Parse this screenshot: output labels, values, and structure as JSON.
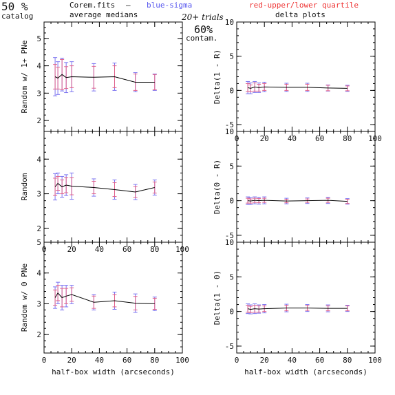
{
  "header": {
    "frac": "50 %",
    "catalog": "catalog",
    "file": "Corem.fits",
    "dash": "–",
    "blue_label": "blue-sigma",
    "red_label": "red-upper/lower quartile",
    "avg_medians": "average medians",
    "trials": "20+ trials",
    "contam_pct": "60%",
    "contam": "contam.",
    "delta_plots": "delta plots"
  },
  "colors": {
    "sigma": "#7b73f0",
    "quartile": "#e0608a",
    "line": "#000000",
    "text_blue": "#5555ee",
    "text_red": "#ee3333"
  },
  "chart_data": [
    {
      "type": "line",
      "id": "left-top",
      "ylabel": "Random w/ 1+ PNe",
      "xlabel": "",
      "xlim": [
        0,
        100
      ],
      "ylim": [
        1.6,
        5.6
      ],
      "yticks": [
        "2",
        "3",
        "4",
        "5"
      ],
      "xticks": [],
      "x": [
        8,
        10,
        13,
        16,
        20,
        36,
        51,
        66,
        80
      ],
      "values": [
        3.6,
        3.55,
        3.68,
        3.57,
        3.6,
        3.58,
        3.6,
        3.4,
        3.4
      ],
      "sigma": [
        0.7,
        0.6,
        0.6,
        0.55,
        0.55,
        0.5,
        0.5,
        0.35,
        0.3
      ],
      "quartile": [
        0.45,
        0.4,
        0.55,
        0.4,
        0.4,
        0.4,
        0.4,
        0.3,
        0.28
      ]
    },
    {
      "type": "line",
      "id": "right-top",
      "ylabel": "Delta(1 - R)",
      "xlabel": "",
      "xlim": [
        0,
        100
      ],
      "ylim": [
        -6,
        10
      ],
      "yticks": [
        "-5",
        "0",
        "5",
        "10"
      ],
      "xticks": [
        "0",
        "20",
        "40",
        "60",
        "80",
        "100"
      ],
      "x": [
        8,
        10,
        13,
        16,
        20,
        36,
        51,
        66,
        80
      ],
      "values": [
        0.4,
        0.3,
        0.5,
        0.4,
        0.5,
        0.45,
        0.45,
        0.35,
        0.3
      ],
      "sigma": [
        0.9,
        0.8,
        0.8,
        0.7,
        0.7,
        0.6,
        0.6,
        0.45,
        0.45
      ],
      "quartile": [
        0.6,
        0.5,
        0.6,
        0.5,
        0.5,
        0.45,
        0.45,
        0.4,
        0.35
      ]
    },
    {
      "type": "line",
      "id": "left-mid",
      "ylabel": "Random",
      "xlabel": "",
      "xlim": [
        0,
        100
      ],
      "ylim": [
        1.6,
        4.8
      ],
      "yticks": [
        "2",
        "3",
        "4"
      ],
      "xticks": [
        "0",
        "20",
        "40",
        "60",
        "80",
        "100"
      ],
      "x": [
        8,
        10,
        13,
        16,
        20,
        36,
        51,
        66,
        80
      ],
      "values": [
        3.2,
        3.3,
        3.2,
        3.25,
        3.22,
        3.18,
        3.12,
        3.05,
        3.18
      ],
      "sigma": [
        0.38,
        0.3,
        0.3,
        0.3,
        0.38,
        0.25,
        0.28,
        0.22,
        0.22
      ],
      "quartile": [
        0.25,
        0.2,
        0.2,
        0.22,
        0.25,
        0.18,
        0.2,
        0.16,
        0.16
      ]
    },
    {
      "type": "line",
      "id": "right-mid",
      "ylabel": "Delta(0 - R)",
      "xlabel": "",
      "xlim": [
        0,
        100
      ],
      "ylim": [
        -6,
        10
      ],
      "yticks": [
        "-5",
        "0",
        "5",
        "10"
      ],
      "xticks": [],
      "x": [
        8,
        10,
        13,
        16,
        20,
        36,
        51,
        66,
        80
      ],
      "values": [
        0.0,
        -0.05,
        0.05,
        0.0,
        0.05,
        -0.05,
        0.0,
        0.05,
        -0.1
      ],
      "sigma": [
        0.55,
        0.5,
        0.5,
        0.5,
        0.5,
        0.4,
        0.4,
        0.45,
        0.4
      ],
      "quartile": [
        0.35,
        0.3,
        0.3,
        0.3,
        0.3,
        0.25,
        0.25,
        0.3,
        0.3
      ]
    },
    {
      "type": "line",
      "id": "left-bot",
      "ylabel": "Random w/ 0 PNe",
      "xlabel": "half-box width (arcseconds)",
      "xlim": [
        0,
        100
      ],
      "ylim": [
        1.4,
        5.0
      ],
      "yticks": [
        "2",
        "3",
        "4",
        "5"
      ],
      "xticks": [
        "0",
        "20",
        "40",
        "60",
        "80",
        "100"
      ],
      "x": [
        8,
        10,
        13,
        16,
        20,
        36,
        51,
        66,
        80
      ],
      "values": [
        3.2,
        3.35,
        3.2,
        3.25,
        3.3,
        3.05,
        3.1,
        3.02,
        3.0
      ],
      "sigma": [
        0.35,
        0.35,
        0.4,
        0.35,
        0.3,
        0.25,
        0.28,
        0.3,
        0.22
      ],
      "quartile": [
        0.25,
        0.25,
        0.3,
        0.25,
        0.22,
        0.2,
        0.2,
        0.22,
        0.18
      ]
    },
    {
      "type": "line",
      "id": "right-bot",
      "ylabel": "Delta(1 - 0)",
      "xlabel": "half-box width (arcseconds)",
      "xlim": [
        0,
        100
      ],
      "ylim": [
        -6,
        10
      ],
      "yticks": [
        "-5",
        "0",
        "5",
        "10"
      ],
      "xticks": [
        "0",
        "20",
        "40",
        "60",
        "80",
        "100"
      ],
      "x": [
        8,
        10,
        13,
        16,
        20,
        36,
        51,
        66,
        80
      ],
      "values": [
        0.4,
        0.3,
        0.4,
        0.35,
        0.4,
        0.5,
        0.5,
        0.45,
        0.45
      ],
      "sigma": [
        0.7,
        0.65,
        0.7,
        0.6,
        0.6,
        0.55,
        0.5,
        0.5,
        0.45
      ],
      "quartile": [
        0.5,
        0.45,
        0.5,
        0.45,
        0.4,
        0.4,
        0.35,
        0.35,
        0.35
      ]
    }
  ]
}
